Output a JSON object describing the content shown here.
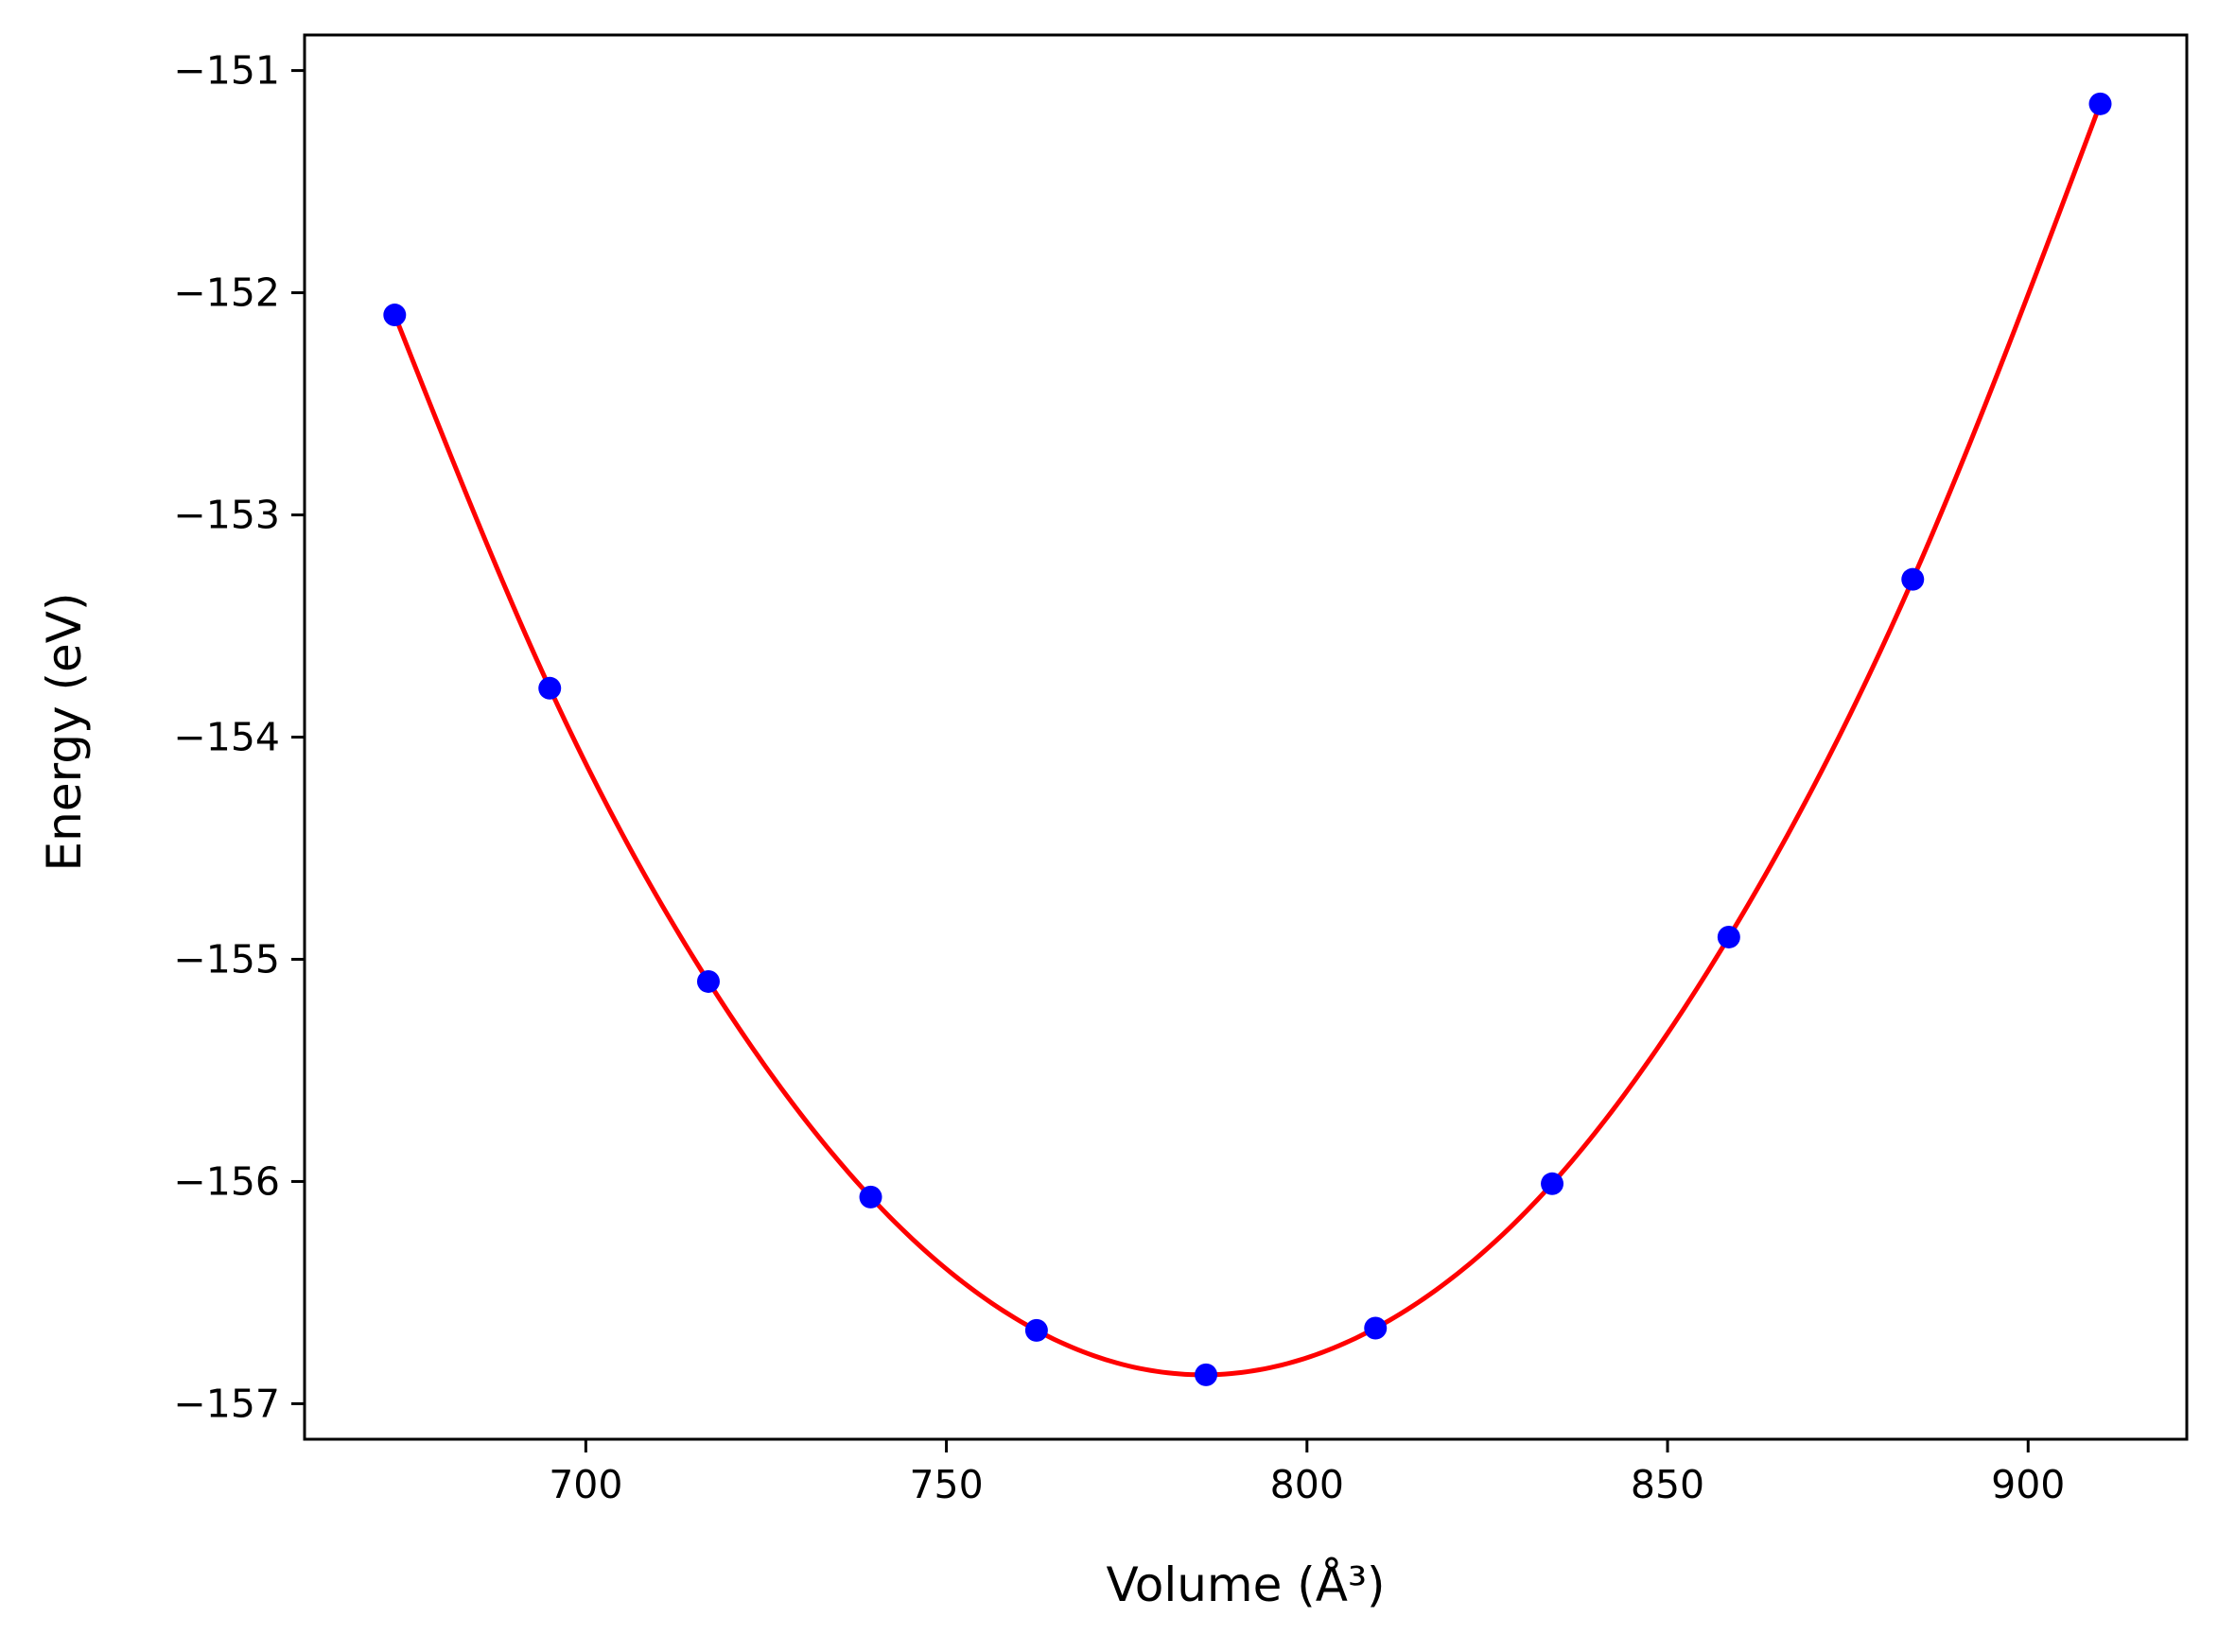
{
  "chart_data": {
    "type": "line",
    "title": "",
    "xlabel": "Volume (Å³)",
    "ylabel": "Energy (eV)",
    "xlim": [
      661,
      922
    ],
    "ylim": [
      -157.16,
      -150.84
    ],
    "x_ticks": [
      700,
      750,
      800,
      850,
      900
    ],
    "y_ticks": [
      -157,
      -156,
      -155,
      -154,
      -153,
      -152,
      -151
    ],
    "x_tick_labels": [
      "700",
      "750",
      "800",
      "850",
      "900"
    ],
    "y_tick_labels": [
      "−157",
      "−156",
      "−155",
      "−154",
      "−153",
      "−152",
      "−151"
    ],
    "grid": false,
    "legend": "none",
    "series": [
      {
        "kind": "scatter",
        "color": "#0000ff",
        "marker": "circle",
        "x": [
          673.5,
          695.0,
          717.0,
          739.5,
          762.5,
          786.0,
          809.5,
          834.0,
          858.5,
          884.0,
          910.0
        ],
        "y": [
          -152.1,
          -153.78,
          -155.1,
          -156.07,
          -156.67,
          -156.87,
          -156.66,
          -156.01,
          -154.9,
          -153.29,
          -151.15
        ]
      },
      {
        "kind": "line",
        "color": "#ff0000",
        "fit": "smooth curve through points",
        "x": [
          673.5,
          695.0,
          717.0,
          739.5,
          762.5,
          786.0,
          809.5,
          834.0,
          858.5,
          884.0,
          910.0
        ],
        "y": [
          -152.1,
          -153.78,
          -155.1,
          -156.07,
          -156.67,
          -156.87,
          -156.66,
          -156.01,
          -154.9,
          -153.29,
          -151.15
        ]
      }
    ]
  }
}
